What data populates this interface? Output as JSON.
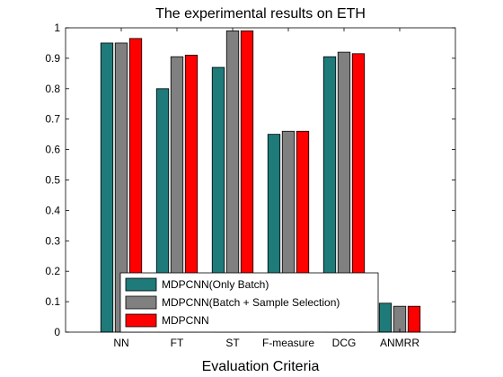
{
  "chart_data": {
    "type": "bar",
    "title": "The experimental results on ETH",
    "xlabel": "Evaluation Criteria",
    "ylabel": "",
    "ylim": [
      0,
      1
    ],
    "yticks": [
      "0",
      "0.1",
      "0.2",
      "0.3",
      "0.4",
      "0.5",
      "0.6",
      "0.7",
      "0.8",
      "0.9",
      "1"
    ],
    "categories": [
      "NN",
      "FT",
      "ST",
      "F-measure",
      "DCG",
      "ANMRR"
    ],
    "series": [
      {
        "name": "MDPCNN(Only Batch)",
        "color": "#1f7a7a",
        "values": [
          0.95,
          0.8,
          0.87,
          0.65,
          0.905,
          0.095
        ]
      },
      {
        "name": "MDPCNN(Batch + Sample Selection)",
        "color": "#808080",
        "values": [
          0.95,
          0.905,
          0.99,
          0.66,
          0.92,
          0.085
        ]
      },
      {
        "name": "MDPCNN",
        "color": "#ff0000",
        "values": [
          0.965,
          0.91,
          0.99,
          0.66,
          0.915,
          0.085
        ]
      }
    ],
    "legend_position": "bottom-center",
    "grid": false
  }
}
